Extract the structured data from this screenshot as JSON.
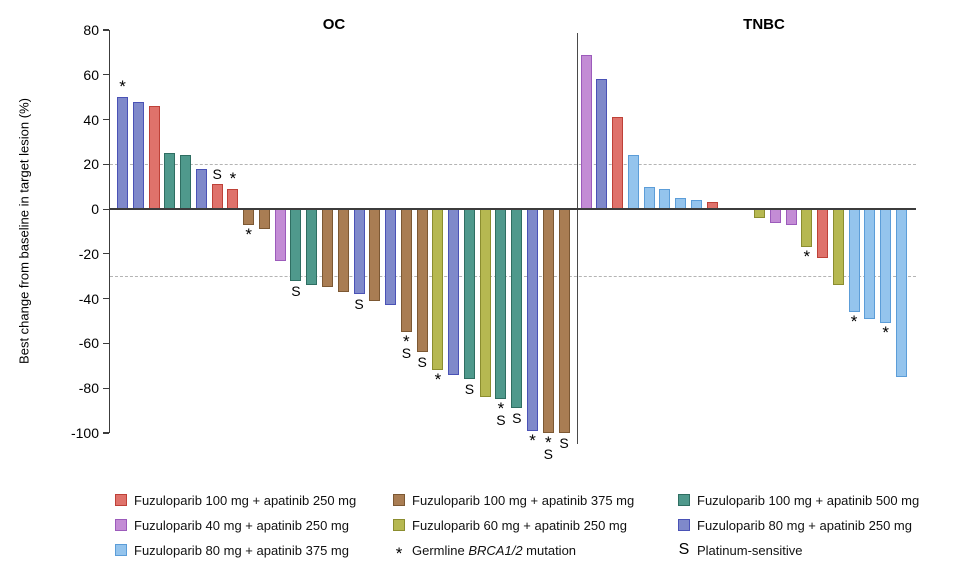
{
  "chart_data": {
    "type": "bar",
    "subtype": "waterfall",
    "title": "",
    "ylabel": "Best change from baseline in target lesion (%)",
    "ylim": [
      -100,
      80
    ],
    "yticks": [
      80,
      60,
      40,
      20,
      0,
      -20,
      -40,
      -60,
      -80,
      -100
    ],
    "reference_lines": [
      20,
      -30
    ],
    "grid": "off",
    "legend_position": "bottom",
    "series_colors": {
      "red": {
        "label": "Fuzuloparib 100 mg + apatinib 250 mg",
        "fill": "#DF726B",
        "border": "#BE4138"
      },
      "purple": {
        "label": "Fuzuloparib 40 mg + apatinib 250 mg",
        "fill": "#C38CD5",
        "border": "#9C5BBB"
      },
      "sky": {
        "label": "Fuzuloparib 80 mg + apatinib 375 mg",
        "fill": "#94C4ED",
        "border": "#5C9DD8"
      },
      "brown": {
        "label": "Fuzuloparib 100 mg + apatinib 375 mg",
        "fill": "#A97D53",
        "border": "#7C5833"
      },
      "olive": {
        "label": "Fuzuloparib 60 mg + apatinib 250 mg",
        "fill": "#B6B851",
        "border": "#8B8D2F"
      },
      "teal": {
        "label": "Fuzuloparib 100 mg + apatinib 500 mg",
        "fill": "#4F998C",
        "border": "#2F6E62"
      },
      "slate": {
        "label": "Fuzuloparib 80 mg + apatinib 250 mg",
        "fill": "#7F89CA",
        "border": "#4A52B6"
      }
    },
    "marker_meanings": {
      "*": "Germline BRCA1/2 mutation",
      "S": "Platinum-sensitive"
    },
    "groups": [
      {
        "title": "OC",
        "bars": [
          {
            "value": 50,
            "series": "slate",
            "marks": [
              "*"
            ]
          },
          {
            "value": 48,
            "series": "slate",
            "marks": []
          },
          {
            "value": 46,
            "series": "red",
            "marks": []
          },
          {
            "value": 25,
            "series": "teal",
            "marks": []
          },
          {
            "value": 24,
            "series": "teal",
            "marks": []
          },
          {
            "value": 18,
            "series": "slate",
            "marks": []
          },
          {
            "value": 11,
            "series": "red",
            "marks": [
              "S"
            ]
          },
          {
            "value": 9,
            "series": "red",
            "marks": [
              "*"
            ]
          },
          {
            "value": -7,
            "series": "brown",
            "marks": [
              "*"
            ]
          },
          {
            "value": -9,
            "series": "brown",
            "marks": []
          },
          {
            "value": -23,
            "series": "purple",
            "marks": []
          },
          {
            "value": -32,
            "series": "teal",
            "marks": [
              "S"
            ]
          },
          {
            "value": -34,
            "series": "teal",
            "marks": []
          },
          {
            "value": -35,
            "series": "brown",
            "marks": []
          },
          {
            "value": -37,
            "series": "brown",
            "marks": []
          },
          {
            "value": -38,
            "series": "slate",
            "marks": [
              "S"
            ]
          },
          {
            "value": -41,
            "series": "brown",
            "marks": []
          },
          {
            "value": -43,
            "series": "slate",
            "marks": []
          },
          {
            "value": -55,
            "series": "brown",
            "marks": [
              "*",
              "S"
            ]
          },
          {
            "value": -64,
            "series": "brown",
            "marks": [
              "S"
            ]
          },
          {
            "value": -72,
            "series": "olive",
            "marks": [
              "*"
            ]
          },
          {
            "value": -74,
            "series": "slate",
            "marks": []
          },
          {
            "value": -76,
            "series": "teal",
            "marks": [
              "S"
            ]
          },
          {
            "value": -84,
            "series": "olive",
            "marks": []
          },
          {
            "value": -85,
            "series": "teal",
            "marks": [
              "*",
              "S"
            ]
          },
          {
            "value": -89,
            "series": "teal",
            "marks": [
              "S"
            ]
          },
          {
            "value": -99,
            "series": "slate",
            "marks": [
              "*"
            ]
          },
          {
            "value": -100,
            "series": "brown",
            "marks": [
              "*",
              "S"
            ]
          },
          {
            "value": -100,
            "series": "brown",
            "marks": [
              "S"
            ]
          }
        ]
      },
      {
        "title": "TNBC",
        "bars": [
          {
            "value": 69,
            "series": "purple",
            "marks": []
          },
          {
            "value": 58,
            "series": "slate",
            "marks": []
          },
          {
            "value": 41,
            "series": "red",
            "marks": []
          },
          {
            "value": 24,
            "series": "sky",
            "marks": []
          },
          {
            "value": 10,
            "series": "sky",
            "marks": []
          },
          {
            "value": 9,
            "series": "sky",
            "marks": []
          },
          {
            "value": 5,
            "series": "sky",
            "marks": []
          },
          {
            "value": 4,
            "series": "sky",
            "marks": []
          },
          {
            "value": 3,
            "series": "red",
            "marks": []
          },
          {
            "spacer": true
          },
          {
            "spacer": true
          },
          {
            "value": -4,
            "series": "olive",
            "marks": []
          },
          {
            "value": -6,
            "series": "purple",
            "marks": []
          },
          {
            "value": -7,
            "series": "purple",
            "marks": []
          },
          {
            "value": -17,
            "series": "olive",
            "marks": [
              "*"
            ]
          },
          {
            "value": -22,
            "series": "red",
            "marks": []
          },
          {
            "value": -34,
            "series": "olive",
            "marks": []
          },
          {
            "value": -46,
            "series": "sky",
            "marks": [
              "*"
            ]
          },
          {
            "value": -49,
            "series": "sky",
            "marks": []
          },
          {
            "value": -51,
            "series": "sky",
            "marks": [
              "*"
            ]
          },
          {
            "value": -75,
            "series": "sky",
            "marks": []
          }
        ]
      }
    ]
  },
  "legend": {
    "columns": [
      [
        {
          "type": "series",
          "key": "red"
        },
        {
          "type": "series",
          "key": "purple"
        },
        {
          "type": "series",
          "key": "sky"
        }
      ],
      [
        {
          "type": "series",
          "key": "brown"
        },
        {
          "type": "series",
          "key": "olive"
        },
        {
          "type": "symbol",
          "symbol": "*",
          "prefix": "Germline ",
          "italic": "BRCA1/2",
          "suffix": " mutation"
        }
      ],
      [
        {
          "type": "series",
          "key": "teal"
        },
        {
          "type": "series",
          "key": "slate"
        },
        {
          "type": "symbol",
          "symbol": "S",
          "label": "Platinum-sensitive"
        }
      ]
    ]
  }
}
